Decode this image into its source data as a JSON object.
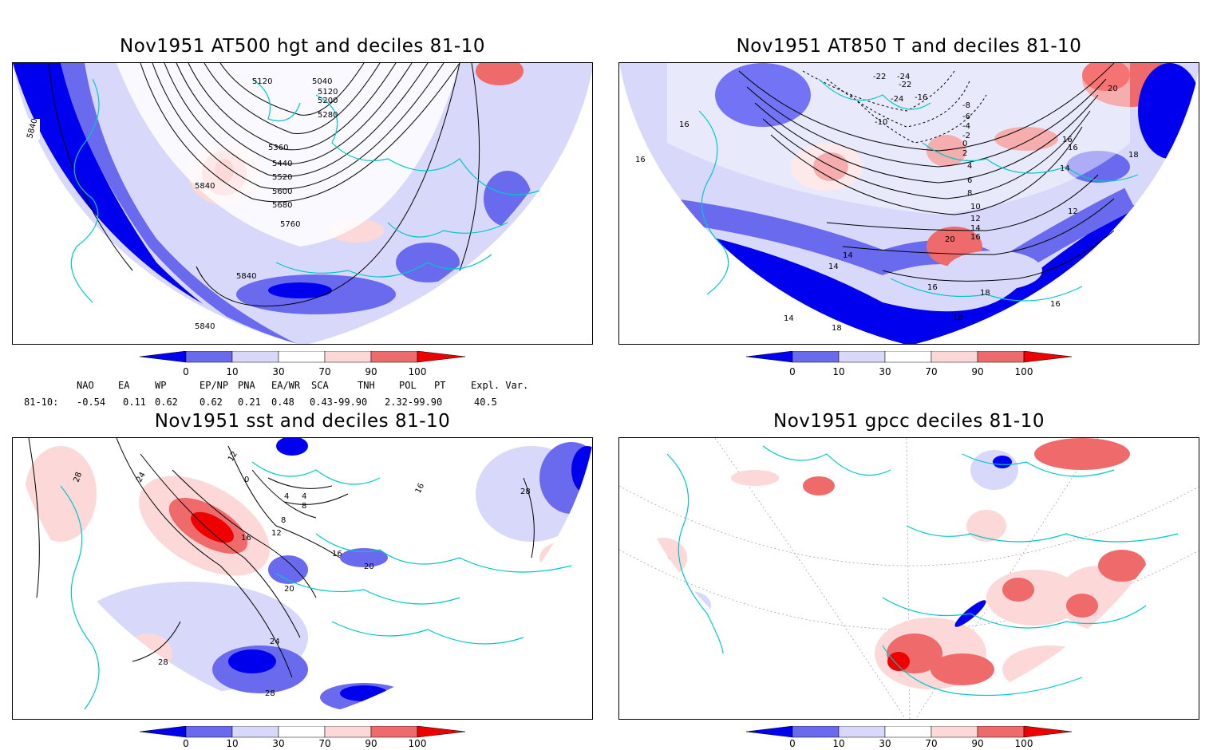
{
  "panels": [
    {
      "title": "Nov1951 AT500 hgt and deciles 81-10",
      "contour_labels": [
        "5840",
        "5120",
        "5040",
        "5120",
        "5200",
        "5280",
        "5360",
        "5440",
        "5520",
        "5600",
        "5680",
        "5760",
        "5840",
        "5840",
        "5840"
      ]
    },
    {
      "title": "Nov1951 AT850 T and deciles 81-10",
      "contour_labels": [
        "-22",
        "-24",
        "-22",
        "-24",
        "-16",
        "-8",
        "-10",
        "-6",
        "-4",
        "-2",
        "0",
        "2",
        "4",
        "6",
        "8",
        "10",
        "12",
        "14",
        "16",
        "16",
        "16",
        "16",
        "16",
        "14",
        "18",
        "20",
        "12",
        "14",
        "14",
        "14",
        "18",
        "20",
        "16",
        "18",
        "18",
        "16"
      ]
    },
    {
      "title": "Nov1951 sst and deciles 81-10",
      "contour_labels": [
        "28",
        "24",
        "12",
        "0",
        "4",
        "4",
        "8",
        "8",
        "12",
        "16",
        "16",
        "20",
        "20",
        "24",
        "28",
        "28",
        "16",
        "28"
      ]
    },
    {
      "title": "Nov1951 gpcc deciles 81-10",
      "contour_labels": []
    }
  ],
  "colorbar": {
    "ticks": [
      "0",
      "10",
      "30",
      "70",
      "90",
      "100"
    ],
    "colors": {
      "strong_blue": "#0000ee",
      "mid_blue": "#6a6aef",
      "light_blue": "#d8d8fa",
      "white": "#ffffff",
      "light_red": "#fcd8d8",
      "mid_red": "#ef6a6a",
      "strong_red": "#ee0000"
    }
  },
  "indices": {
    "headers": [
      "NAO",
      "EA",
      "WP",
      "EP/NP",
      "PNA",
      "EA/WR",
      "SCA",
      "TNH",
      "POL",
      "PT",
      "Expl. Var."
    ],
    "period_label": "81-10:",
    "values": [
      "-0.54",
      "0.11",
      "0.62",
      "0.62",
      "0.21",
      "0.48",
      "0.43-99.90",
      "",
      "2.32-99.90",
      "",
      "40.5"
    ]
  },
  "colors": {
    "coast": "#00c8c8",
    "contour": "#000000",
    "grid": "#999999"
  }
}
